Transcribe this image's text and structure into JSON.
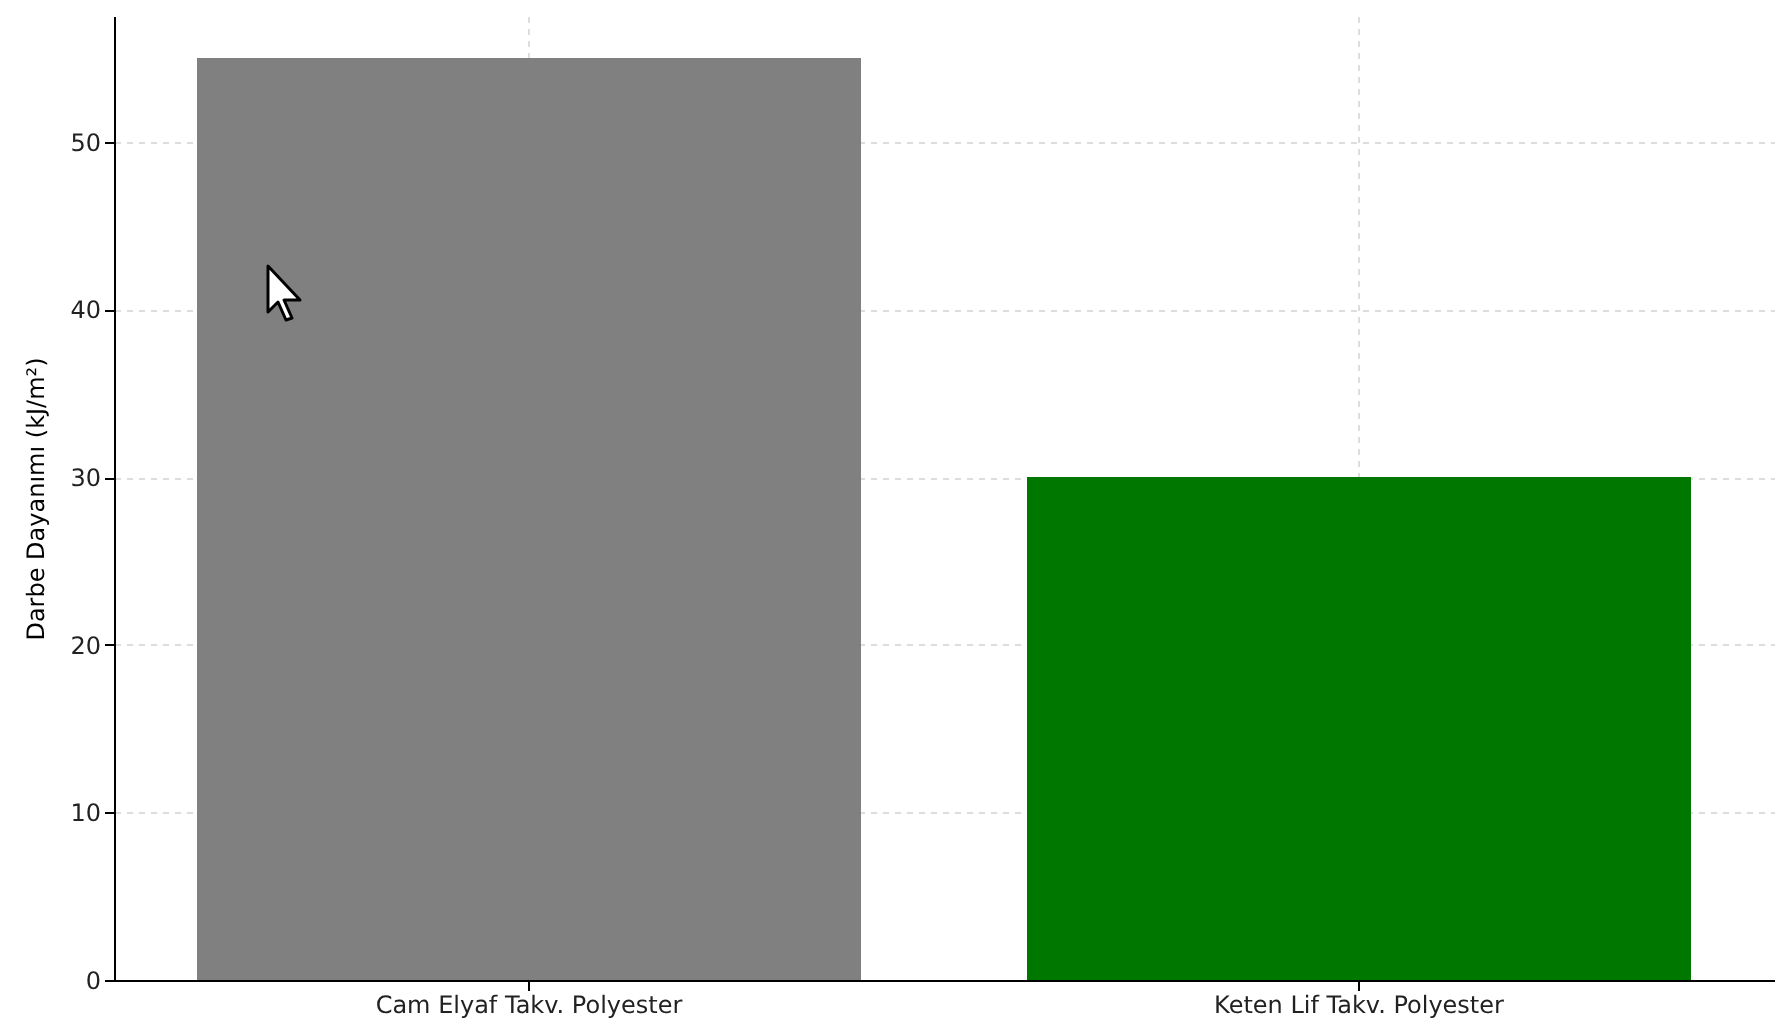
{
  "chart_data": {
    "type": "bar",
    "ylabel": "Darbe Dayanımı (kJ/m²)",
    "categories": [
      "Cam Elyaf Takv. Polyester",
      "Keten Lif Takv. Polyester"
    ],
    "values": [
      55,
      30
    ],
    "colors": [
      "#808080",
      "#007800"
    ],
    "ylim": [
      0,
      57.5
    ],
    "yticks": [
      0,
      10,
      20,
      30,
      40,
      50
    ],
    "grid": true
  }
}
